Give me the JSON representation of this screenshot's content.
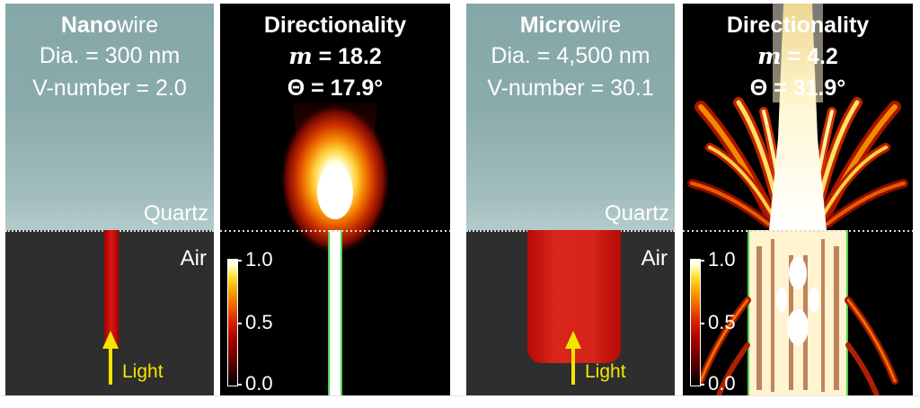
{
  "panels": {
    "nano": {
      "title_bold": "Nano",
      "title_rest": "wire",
      "diameter": "Dia. = 300 nm",
      "vnumber": "V-number = 2.0",
      "quartz": "Quartz",
      "air": "Air",
      "light": "Light"
    },
    "nano_field": {
      "title": "Directionality",
      "m_symbol": "m",
      "m_value": " = 18.2",
      "theta": "Θ = 17.9°",
      "colorbar": {
        "max": "1.0",
        "mid": "0.5",
        "min": "0.0"
      }
    },
    "micro": {
      "title_bold": "Micro",
      "title_rest": "wire",
      "diameter": "Dia. = 4,500 nm",
      "vnumber": "V-number = 30.1",
      "quartz": "Quartz",
      "air": "Air",
      "light": "Light"
    },
    "micro_field": {
      "title": "Directionality",
      "m_symbol": "m",
      "m_value": " = 4.2",
      "theta": "Θ = 31.9°",
      "colorbar": {
        "max": "1.0",
        "mid": "0.5",
        "min": "0.0"
      }
    }
  },
  "colors": {
    "quartz": "#8aabab",
    "air": "#2e2e2e",
    "wire": "#d21e16",
    "arrow": "#f2e600",
    "field_bg": "#000000"
  }
}
